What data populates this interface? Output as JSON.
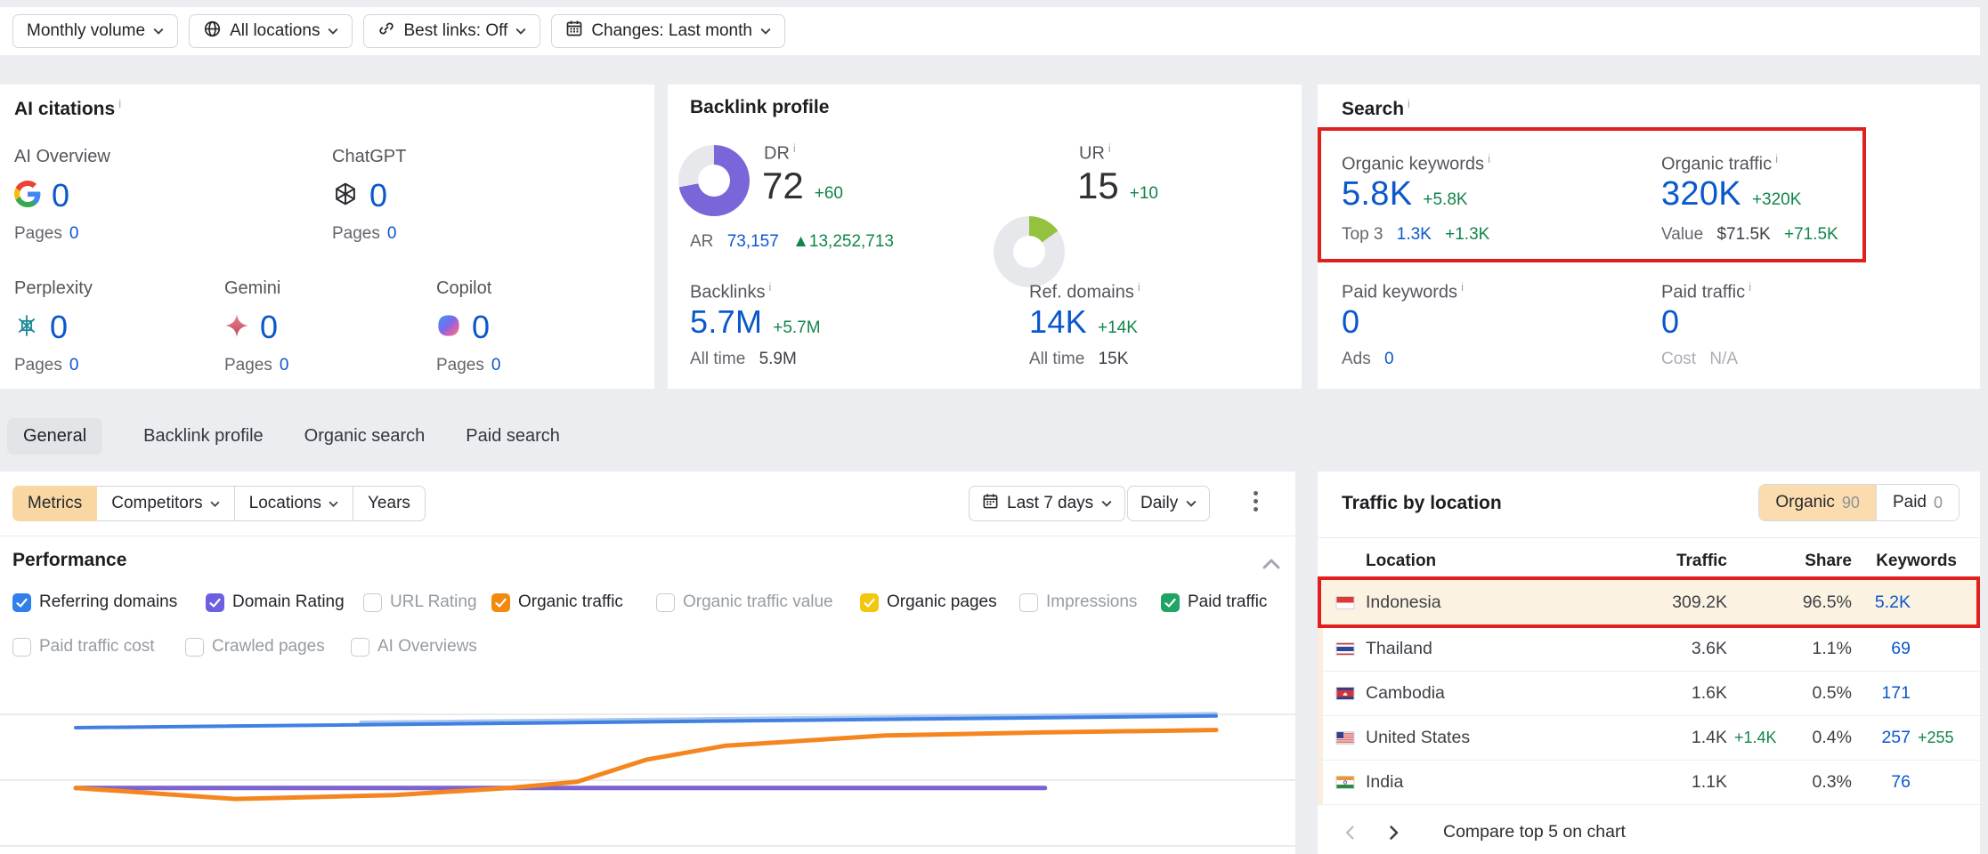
{
  "toolbar": {
    "filters": [
      {
        "label": "Monthly volume",
        "icon": null
      },
      {
        "label": "All locations",
        "icon": "globe"
      },
      {
        "label": "Best links: Off",
        "icon": "link"
      },
      {
        "label": "Changes: Last month",
        "icon": "calendar"
      }
    ]
  },
  "ai_citations": {
    "title": "AI citations",
    "items": [
      {
        "name": "AI Overview",
        "icon": "google",
        "value": "0",
        "pages_label": "Pages",
        "pages_value": "0"
      },
      {
        "name": "ChatGPT",
        "icon": "chatgpt",
        "value": "0",
        "pages_label": "Pages",
        "pages_value": "0"
      },
      {
        "name": "Perplexity",
        "icon": "perplexity",
        "value": "0",
        "pages_label": "Pages",
        "pages_value": "0"
      },
      {
        "name": "Gemini",
        "icon": "gemini",
        "value": "0",
        "pages_label": "Pages",
        "pages_value": "0"
      },
      {
        "name": "Copilot",
        "icon": "copilot",
        "value": "0",
        "pages_label": "Pages",
        "pages_value": "0"
      }
    ]
  },
  "backlink_profile": {
    "title": "Backlink profile",
    "dr": {
      "label": "DR",
      "value": "72",
      "delta": "+60",
      "percent": 72,
      "color": "#7a66d9"
    },
    "ur": {
      "label": "UR",
      "value": "15",
      "delta": "+10",
      "percent": 15,
      "color": "#94c13e"
    },
    "ar": {
      "label": "AR",
      "value": "73,157",
      "delta_arrow": "▲",
      "delta": "13,252,713"
    },
    "backlinks": {
      "label": "Backlinks",
      "value": "5.7M",
      "delta": "+5.7M",
      "alltime_label": "All time",
      "alltime_value": "5.9M"
    },
    "ref_domains": {
      "label": "Ref. domains",
      "value": "14K",
      "delta": "+14K",
      "alltime_label": "All time",
      "alltime_value": "15K"
    }
  },
  "search": {
    "title": "Search",
    "organic_keywords": {
      "label": "Organic keywords",
      "value": "5.8K",
      "delta": "+5.8K",
      "sub_label": "Top 3",
      "sub_value": "1.3K",
      "sub_delta": "+1.3K"
    },
    "organic_traffic": {
      "label": "Organic traffic",
      "value": "320K",
      "delta": "+320K",
      "sub_label": "Value",
      "sub_value": "$71.5K",
      "sub_delta": "+71.5K"
    },
    "paid_keywords": {
      "label": "Paid keywords",
      "value": "0",
      "sub_label": "Ads",
      "sub_value": "0"
    },
    "paid_traffic": {
      "label": "Paid traffic",
      "value": "0",
      "sub_label": "Cost",
      "sub_value": "N/A"
    }
  },
  "tabs": [
    {
      "label": "General",
      "active": true
    },
    {
      "label": "Backlink profile",
      "active": false
    },
    {
      "label": "Organic search",
      "active": false
    },
    {
      "label": "Paid search",
      "active": false
    }
  ],
  "performance_panel": {
    "controls": [
      {
        "label": "Metrics",
        "active": true,
        "caret": false
      },
      {
        "label": "Competitors",
        "active": false,
        "caret": true
      },
      {
        "label": "Locations",
        "active": false,
        "caret": true
      },
      {
        "label": "Years",
        "active": false,
        "caret": false
      }
    ],
    "date_range": "Last 7 days",
    "granularity": "Daily",
    "section_title": "Performance",
    "metrics": [
      {
        "label": "Referring domains",
        "checked": true,
        "color": "#2f80ed"
      },
      {
        "label": "Domain Rating",
        "checked": true,
        "color": "#6d5fe0"
      },
      {
        "label": "URL Rating",
        "checked": false,
        "color": null
      },
      {
        "label": "Organic traffic",
        "checked": true,
        "color": "#f28a0f"
      },
      {
        "label": "Organic traffic value",
        "checked": false,
        "color": null
      },
      {
        "label": "Organic pages",
        "checked": true,
        "color": "#f3c60f"
      },
      {
        "label": "Impressions",
        "checked": false,
        "color": null
      },
      {
        "label": "Paid traffic",
        "checked": true,
        "color": "#1fa463"
      },
      {
        "label": "Paid traffic cost",
        "checked": false,
        "color": null
      },
      {
        "label": "Crawled pages",
        "checked": false,
        "color": null
      },
      {
        "label": "AI Overviews",
        "checked": false,
        "color": null
      }
    ]
  },
  "chart_data": {
    "type": "line",
    "title": "Performance (Last 7 days, Daily)",
    "xlabel": "",
    "ylabel": "",
    "axis_note": "no tick labels visible; y values estimated on a relative 0-100 scale from gridlines",
    "grid_levels": [
      0,
      42,
      84
    ],
    "series": [
      {
        "name": "unlabeled light blue line",
        "color": "#a9c7ee",
        "x": [
          25,
          100
        ],
        "values": [
          79,
          84.5
        ]
      },
      {
        "name": "Referring domains",
        "color": "#4080e0",
        "x": [
          0,
          100
        ],
        "values": [
          75.5,
          83
        ]
      },
      {
        "name": "Domain Rating",
        "color": "#7d63cf",
        "x": [
          0,
          85
        ],
        "values": [
          37,
          37
        ]
      },
      {
        "name": "Organic traffic",
        "color": "#f5861f",
        "x": [
          0,
          14,
          28,
          38,
          44,
          50,
          57,
          71,
          85,
          100
        ],
        "values": [
          37,
          30,
          32.5,
          37,
          41,
          55,
          64,
          70.5,
          72.5,
          74
        ]
      }
    ],
    "legend_position": "checkbox toggles above chart"
  },
  "traffic_by_location": {
    "title": "Traffic by location",
    "toggle": [
      {
        "label": "Organic",
        "count": "90",
        "active": true
      },
      {
        "label": "Paid",
        "count": "0",
        "active": false
      }
    ],
    "columns": {
      "location": "Location",
      "traffic": "Traffic",
      "share": "Share",
      "keywords": "Keywords"
    },
    "rows": [
      {
        "location": "Indonesia",
        "flag": "indonesia",
        "traffic": "309.2K",
        "traffic_delta": "",
        "share": "96.5%",
        "keywords": "5.2K",
        "keywords_delta": "",
        "highlighted": true
      },
      {
        "location": "Thailand",
        "flag": "thailand",
        "traffic": "3.6K",
        "traffic_delta": "",
        "share": "1.1%",
        "keywords": "69",
        "keywords_delta": "",
        "highlighted": false
      },
      {
        "location": "Cambodia",
        "flag": "cambodia",
        "traffic": "1.6K",
        "traffic_delta": "",
        "share": "0.5%",
        "keywords": "171",
        "keywords_delta": "",
        "highlighted": false
      },
      {
        "location": "United States",
        "flag": "united-states",
        "traffic": "1.4K",
        "traffic_delta": "+1.4K",
        "share": "0.4%",
        "keywords": "257",
        "keywords_delta": "+255",
        "highlighted": false
      },
      {
        "location": "India",
        "flag": "india",
        "traffic": "1.1K",
        "traffic_delta": "",
        "share": "0.3%",
        "keywords": "76",
        "keywords_delta": "",
        "highlighted": false
      }
    ],
    "pagination": {
      "prev_enabled": false,
      "next_enabled": true
    },
    "compare_label": "Compare top 5 on chart"
  },
  "annotations": {
    "color": "#e01f1f",
    "boxes": [
      "search-organic-metrics",
      "traffic-by-location-indonesia-row"
    ]
  }
}
